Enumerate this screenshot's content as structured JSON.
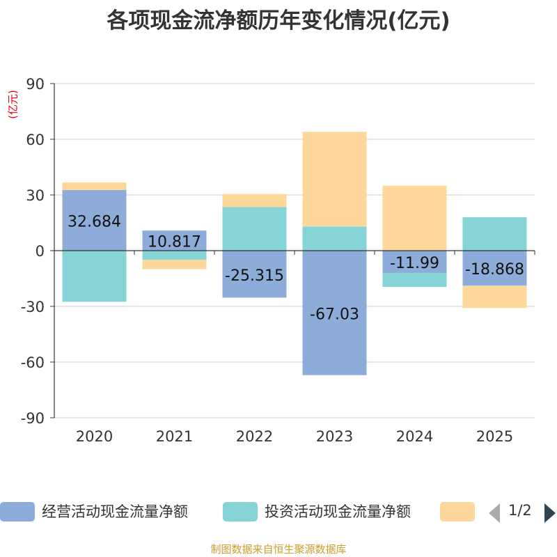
{
  "title": "各项现金流净额历年变化情况(亿元)",
  "source": "制图数据来自恒生聚源数据库",
  "colors": {
    "operating": "#8eacd9",
    "investing": "#86d4d6",
    "financing": "#fed89a",
    "text": "#333333",
    "grid": "#cccccc",
    "unit": "#e60012"
  },
  "legend": {
    "pager_text": "1/2"
  },
  "chart_data": {
    "type": "bar",
    "stacked": true,
    "title": "各项现金流净额历年变化情况(亿元)",
    "ylabel": "(亿元)",
    "xlabel": "",
    "ylim": [
      -90,
      90
    ],
    "yticks": [
      90,
      60,
      30,
      0,
      -30,
      -60,
      -90
    ],
    "grid": true,
    "legend_position": "bottom",
    "categories": [
      "2020",
      "2021",
      "2022",
      "2023",
      "2024",
      "2025"
    ],
    "series": [
      {
        "name": "经营活动现金流量净额",
        "color": "#8eacd9",
        "values": [
          32.684,
          10.817,
          -25.315,
          -67.03,
          -11.99,
          -18.868
        ],
        "labels": [
          "32.684",
          "10.817",
          "-25.315",
          "-67.03",
          "-11.99",
          "-18.868"
        ]
      },
      {
        "name": "投资活动现金流量净额",
        "color": "#86d4d6",
        "values": [
          -27.5,
          -5.0,
          23.5,
          13.0,
          -7.5,
          18.0
        ]
      },
      {
        "name": "",
        "color": "#fed89a",
        "values": [
          4.0,
          -5.0,
          7.0,
          51.0,
          35.0,
          -12.0
        ]
      }
    ]
  }
}
